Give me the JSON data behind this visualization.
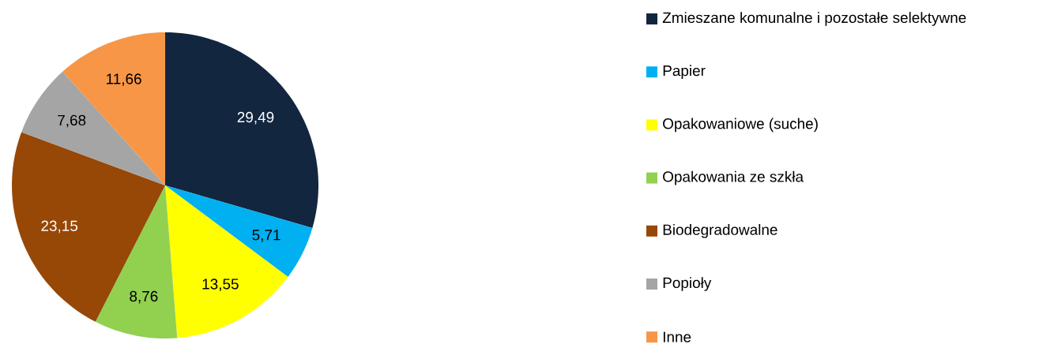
{
  "chart_data": {
    "type": "pie",
    "categories": [
      "Zmieszane komunalne i pozostałe selektywne",
      "Papier",
      "Opakowaniowe (suche)",
      "Opakowania ze szkła",
      "Biodegradowalne",
      "Popioły",
      "Inne"
    ],
    "values": [
      29.49,
      5.71,
      13.55,
      8.76,
      23.15,
      7.68,
      11.66
    ],
    "value_labels": [
      "29,49",
      "5,71",
      "13,55",
      "8,76",
      "23,15",
      "7,68",
      "11,66"
    ],
    "colors": [
      "#12263f",
      "#00b0f0",
      "#ffff00",
      "#92d050",
      "#974706",
      "#a5a5a5",
      "#f79646"
    ],
    "legend": "right"
  }
}
